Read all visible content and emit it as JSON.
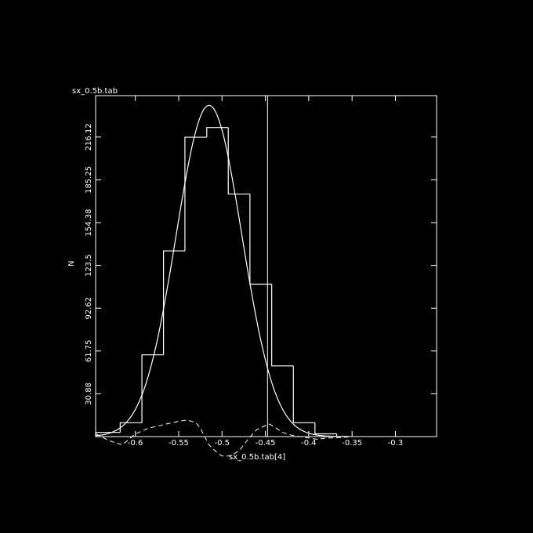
{
  "chart_data": {
    "type": "bar",
    "title": "sx_0.5b.tab",
    "xlabel": "sx_0.5b.tab[4]",
    "ylabel": "N",
    "xlim": [
      -0.6458,
      -0.2525
    ],
    "ylim": [
      0,
      246
    ],
    "x_ticks": [
      -0.6,
      -0.55,
      -0.5,
      -0.45,
      -0.4,
      -0.35,
      -0.3
    ],
    "x_tick_labels": [
      "-0.6",
      "-0.55",
      "-0.5",
      "-0.45",
      "-0.4",
      "-0.35",
      "-0.3"
    ],
    "y_ticks": [
      30.88,
      61.75,
      92.62,
      123.5,
      154.38,
      185.25,
      216.12
    ],
    "y_tick_labels": [
      "30.88",
      "61.75",
      "92.62",
      "123.5",
      "154.38",
      "185.25",
      "216.12"
    ],
    "grid": false,
    "histogram": {
      "bin_edges": [
        -0.6458,
        -0.6175,
        -0.5924,
        -0.5675,
        -0.5428,
        -0.5176,
        -0.4928,
        -0.4678,
        -0.4427,
        -0.4177,
        -0.3928,
        -0.3677
      ],
      "counts": [
        3,
        10,
        59,
        134,
        216,
        223,
        175,
        110,
        51,
        10,
        2
      ]
    },
    "gaussian_fit": {
      "peak": 239,
      "mean": -0.515,
      "sigma": 0.038
    },
    "residual_curve": {
      "x": [
        -0.6458,
        -0.63,
        -0.615,
        -0.6,
        -0.585,
        -0.565,
        -0.55,
        -0.54,
        -0.53,
        -0.525,
        -0.5225,
        -0.515,
        -0.505,
        -0.5,
        -0.49,
        -0.48,
        -0.47,
        -0.46,
        -0.45,
        -0.445,
        -0.44,
        -0.43,
        -0.42,
        -0.41,
        -0.4,
        -0.39,
        -0.38,
        -0.37,
        -0.36,
        -0.35
      ],
      "y": [
        2,
        -3,
        -6,
        2,
        6,
        9,
        11,
        12,
        10,
        6,
        3,
        -6,
        -12,
        -14,
        -14,
        -10,
        -2,
        5,
        8,
        9,
        7,
        3,
        1,
        0,
        -1,
        -2,
        -1,
        -1,
        -0.5,
        0
      ]
    },
    "vertical_marker_x": -0.4475
  }
}
